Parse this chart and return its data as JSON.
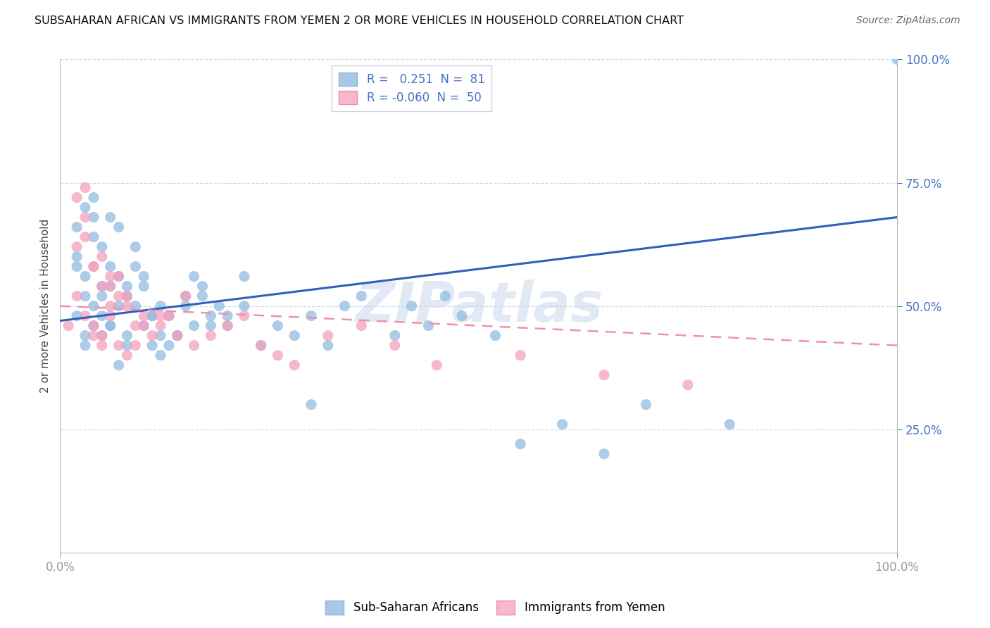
{
  "title": "SUBSAHARAN AFRICAN VS IMMIGRANTS FROM YEMEN 2 OR MORE VEHICLES IN HOUSEHOLD CORRELATION CHART",
  "source": "Source: ZipAtlas.com",
  "ylabel": "2 or more Vehicles in Household",
  "legend1_label": "R =   0.251  N =  81",
  "legend2_label": "R = -0.060  N =  50",
  "legend1_color": "#a8c8e8",
  "legend2_color": "#f8b8cc",
  "scatter1_color": "#90bce0",
  "scatter2_color": "#f4a0bc",
  "line1_color": "#3060b8",
  "line2_color": "#f090b0",
  "watermark": "ZIPatlas",
  "background_color": "#ffffff",
  "grid_color": "#d0d8e8",
  "xlim": [
    0.0,
    100.0
  ],
  "ylim": [
    0.0,
    100.0
  ],
  "line1_x0": 0,
  "line1_x1": 100,
  "line1_y0": 47,
  "line1_y1": 68,
  "line2_x0": 0,
  "line2_x1": 100,
  "line2_y0": 50,
  "line2_y1": 42,
  "blue_x": [
    2,
    3,
    2,
    4,
    3,
    5,
    2,
    4,
    6,
    3,
    7,
    5,
    4,
    8,
    3,
    6,
    2,
    9,
    5,
    7,
    4,
    10,
    6,
    8,
    3,
    11,
    5,
    9,
    7,
    12,
    4,
    6,
    10,
    8,
    13,
    14,
    5,
    15,
    11,
    7,
    16,
    9,
    12,
    17,
    6,
    18,
    10,
    13,
    19,
    20,
    8,
    14,
    22,
    11,
    24,
    15,
    26,
    12,
    28,
    16,
    30,
    17,
    32,
    18,
    34,
    20,
    36,
    22,
    40,
    42,
    44,
    46,
    48,
    52,
    30,
    55,
    60,
    65,
    70,
    80,
    100
  ],
  "blue_y": [
    48,
    52,
    58,
    46,
    44,
    62,
    66,
    50,
    54,
    42,
    56,
    48,
    64,
    44,
    70,
    46,
    60,
    50,
    52,
    38,
    68,
    54,
    46,
    42,
    56,
    48,
    44,
    62,
    50,
    40,
    72,
    58,
    46,
    52,
    48,
    44,
    54,
    50,
    42,
    66,
    46,
    58,
    44,
    52,
    68,
    48,
    56,
    42,
    50,
    46,
    54,
    44,
    50,
    48,
    42,
    52,
    46,
    50,
    44,
    56,
    48,
    54,
    42,
    46,
    50,
    48,
    52,
    56,
    44,
    50,
    46,
    52,
    48,
    44,
    30,
    22,
    26,
    20,
    30,
    26,
    100
  ],
  "pink_x": [
    1,
    2,
    3,
    2,
    4,
    3,
    5,
    4,
    2,
    6,
    3,
    5,
    7,
    4,
    6,
    8,
    3,
    5,
    9,
    7,
    4,
    10,
    6,
    8,
    11,
    5,
    12,
    7,
    9,
    13,
    6,
    14,
    8,
    10,
    15,
    12,
    16,
    18,
    20,
    22,
    24,
    26,
    28,
    32,
    36,
    40,
    45,
    55,
    65,
    75
  ],
  "pink_y": [
    46,
    72,
    68,
    52,
    58,
    48,
    54,
    44,
    62,
    50,
    74,
    42,
    56,
    46,
    48,
    52,
    64,
    44,
    46,
    42,
    58,
    48,
    54,
    40,
    44,
    60,
    46,
    52,
    42,
    48,
    56,
    44,
    50,
    46,
    52,
    48,
    42,
    44,
    46,
    48,
    42,
    40,
    38,
    44,
    46,
    42,
    38,
    40,
    36,
    34
  ]
}
